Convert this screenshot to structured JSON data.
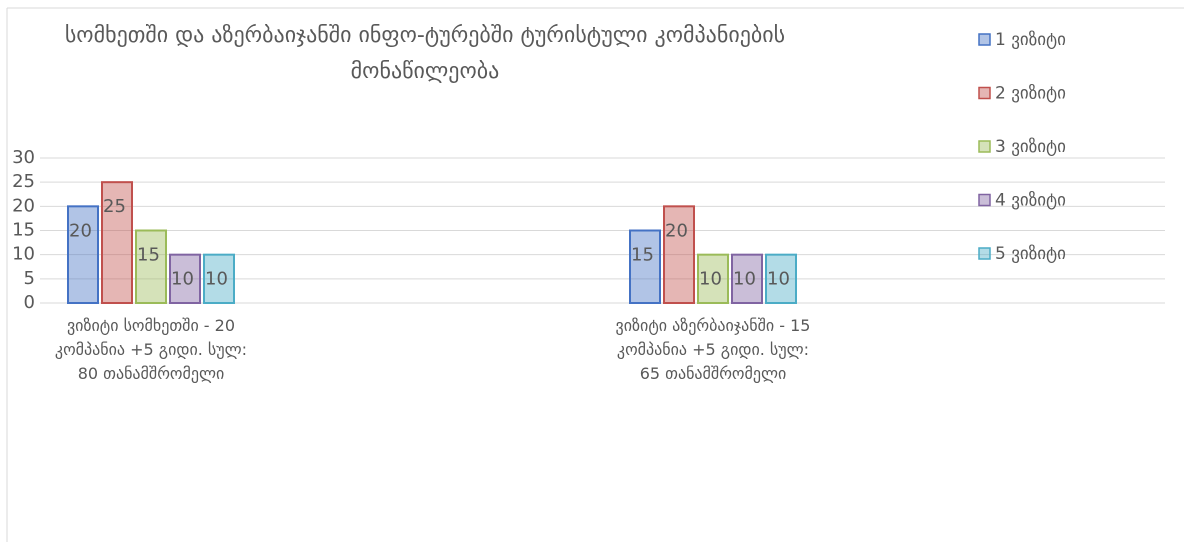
{
  "chart_data": {
    "type": "bar",
    "title": "სომხეთში და აზერბაიჯანში ინფო-ტურებში ტურისტული კომპანიების მონაწილეობა",
    "categories": [
      "ვიზიტი სომხეთში - 20 კომპანია +5 გიდი. სულ: 80 თანამშრომელი",
      "ვიზიტი აზერბაიჯანში - 15 კომპანია +5 გიდი. სულ: 65 თანამშრომელი"
    ],
    "series": [
      {
        "name": "1 ვიზიტი",
        "color": "#4472c4",
        "values": [
          20,
          15
        ]
      },
      {
        "name": "2 ვიზიტი",
        "color": "#c0504d",
        "values": [
          25,
          20
        ]
      },
      {
        "name": "3 ვიზიტი",
        "color": "#9bbb59",
        "values": [
          15,
          10
        ]
      },
      {
        "name": "4 ვიზიტი",
        "color": "#8064a2",
        "values": [
          10,
          10
        ]
      },
      {
        "name": "5 ვიზიტი",
        "color": "#4bacc6",
        "values": [
          10,
          10
        ]
      }
    ],
    "ylim": [
      0,
      30
    ],
    "yticks": [
      0,
      5,
      10,
      15,
      20,
      25,
      30
    ],
    "grid": true,
    "legend": "right"
  }
}
